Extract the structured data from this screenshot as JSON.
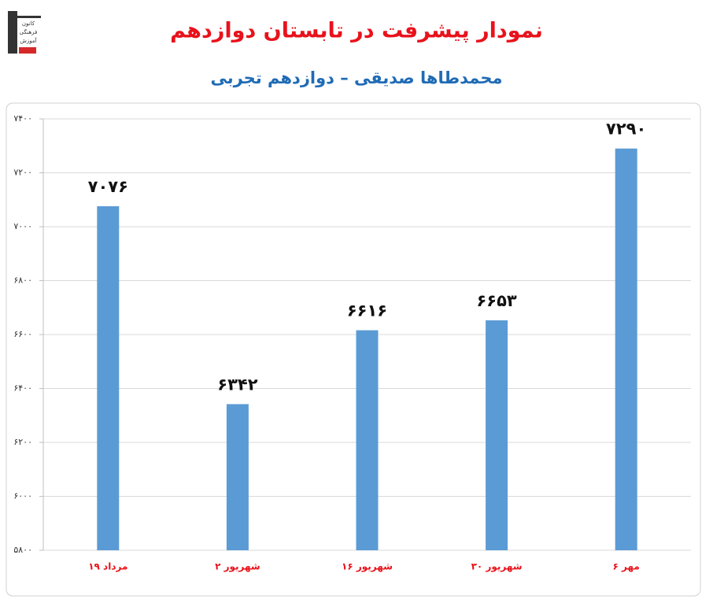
{
  "chart_data": {
    "type": "bar",
    "title": "نمودار پیشرفت در تابستان دوازدهم",
    "subtitle": "محمدطاها صدیقی – دوازدهم تجربی",
    "logo_text": [
      "کانون",
      "فرهنگی",
      "آموزش"
    ],
    "categories": [
      "۱۹ مرداد",
      "۲ شهریور",
      "۱۶ شهریور",
      "۳۰ شهریور",
      "۶ مهر"
    ],
    "values": [
      7076,
      6342,
      6616,
      6653,
      7290
    ],
    "value_labels": [
      "۷۰۷۶",
      "۶۳۴۲",
      "۶۶۱۶",
      "۶۶۵۳",
      "۷۲۹۰"
    ],
    "color": "#5b9bd5",
    "ylim": [
      5800,
      7400
    ],
    "yticks": [
      {
        "value": 5800,
        "label": "۵۸۰۰"
      },
      {
        "value": 6000,
        "label": "۶۰۰۰"
      },
      {
        "value": 6200,
        "label": "۶۲۰۰"
      },
      {
        "value": 6400,
        "label": "۶۴۰۰"
      },
      {
        "value": 6600,
        "label": "۶۶۰۰"
      },
      {
        "value": 6800,
        "label": "۶۸۰۰"
      },
      {
        "value": 7000,
        "label": "۷۰۰۰"
      },
      {
        "value": 7200,
        "label": "۷۲۰۰"
      },
      {
        "value": 7400,
        "label": "۷۴۰۰"
      }
    ],
    "grid": true
  }
}
